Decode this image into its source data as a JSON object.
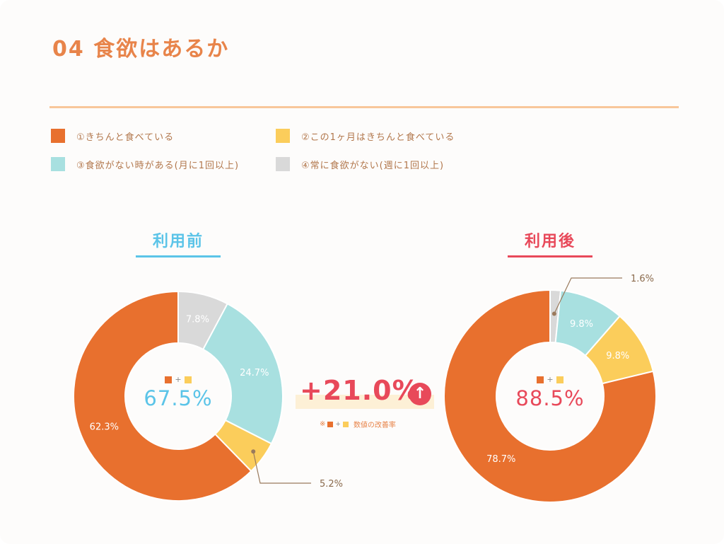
{
  "title": "04 食欲はあるか",
  "legend": [
    {
      "label": "①きちんと食べている",
      "color": "#e8702e"
    },
    {
      "label": "②この1ヶ月はきちんと食べている",
      "color": "#fbcd5b"
    },
    {
      "label": "③食欲がない時がある(月に1回以上)",
      "color": "#a8e0e0"
    },
    {
      "label": "④常に食欲がない(週に1回以上)",
      "color": "#d9d9d9"
    }
  ],
  "before": {
    "heading": "利用前",
    "heading_color": "#5bc4e8",
    "center_value": "67.5%",
    "center_color": "#5bc4e8"
  },
  "after": {
    "heading": "利用後",
    "heading_color": "#e8495a",
    "center_value": "88.5%",
    "center_color": "#e8495a"
  },
  "improvement": {
    "value": "+21.0%",
    "icon": "arrow-up-icon",
    "note": "数値の改善率",
    "note_prefix": "※",
    "plus": "+"
  },
  "chart_data": [
    {
      "type": "pie",
      "title": "利用前",
      "categories": [
        "①きちんと食べている",
        "②この1ヶ月はきちんと食べている",
        "③食欲がない時がある(月に1回以上)",
        "④常に食欲がない(週に1回以上)"
      ],
      "values": [
        62.3,
        5.2,
        24.7,
        7.8
      ],
      "labels": [
        "62.3%",
        "5.2%",
        "24.7%",
        "7.8%"
      ],
      "colors": [
        "#e8702e",
        "#fbcd5b",
        "#a8e0e0",
        "#d9d9d9"
      ],
      "style": "donut"
    },
    {
      "type": "pie",
      "title": "利用後",
      "categories": [
        "①きちんと食べている",
        "②この1ヶ月はきちんと食べている",
        "③食欲がない時がある(月に1回以上)",
        "④常に食欲がない(週に1回以上)"
      ],
      "values": [
        78.7,
        9.8,
        9.8,
        1.6
      ],
      "labels": [
        "78.7%",
        "9.8%",
        "9.8%",
        "1.6%"
      ],
      "colors": [
        "#e8702e",
        "#fbcd5b",
        "#a8e0e0",
        "#d9d9d9"
      ],
      "style": "donut"
    }
  ]
}
